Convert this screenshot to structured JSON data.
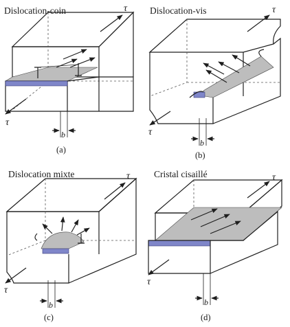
{
  "panels": [
    {
      "id": "a",
      "title": "Dislocation-coin",
      "caption": "(a)"
    },
    {
      "id": "b",
      "title": "Dislocation-vis",
      "caption": "(b)"
    },
    {
      "id": "c",
      "title": "Dislocation mixte",
      "caption": "(c)"
    },
    {
      "id": "d",
      "title": "Cristal cisaillé",
      "caption": "(d)"
    }
  ],
  "symbols": {
    "shear_stress": "τ",
    "burgers_vector": "b"
  },
  "colors": {
    "slip_plane": "#bdbdbd",
    "step_face": "#7f86c9",
    "line": "#1e1e1e",
    "background": "#ffffff"
  }
}
